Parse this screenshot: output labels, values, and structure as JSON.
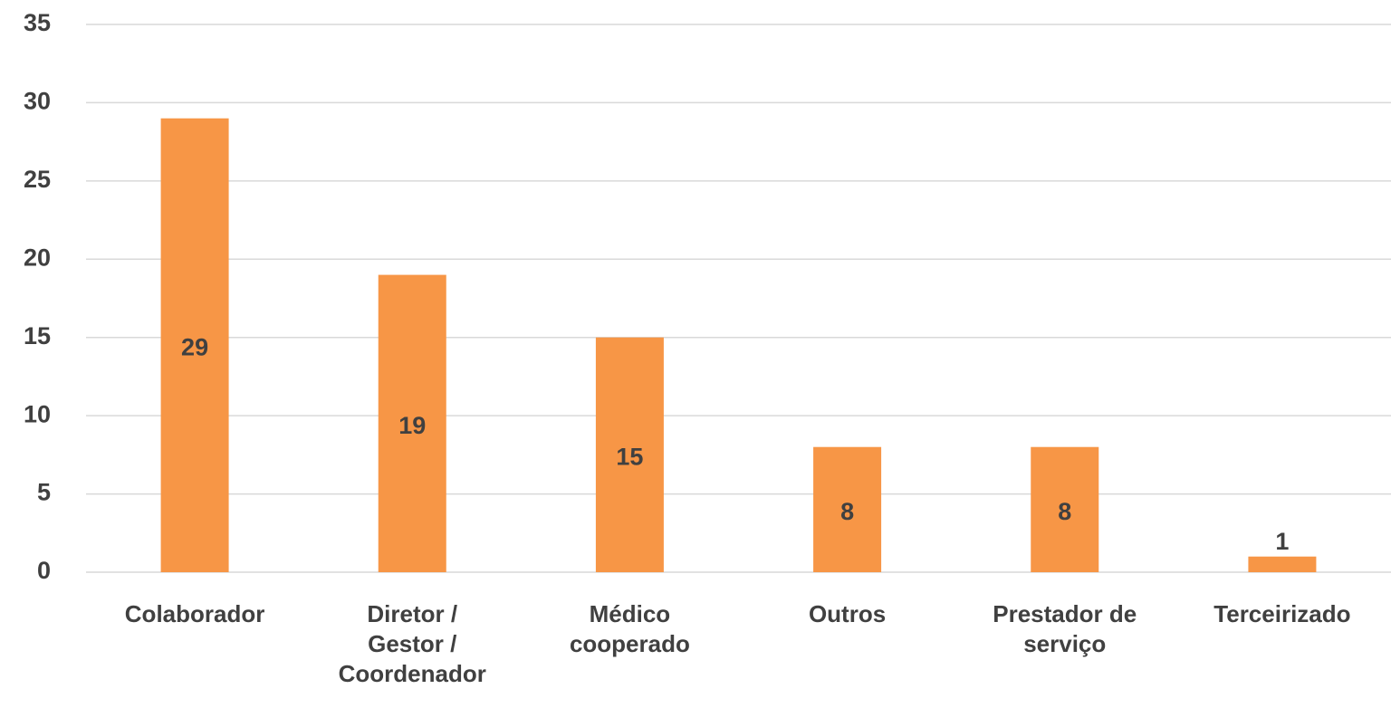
{
  "chart_data": {
    "type": "bar",
    "categories": [
      "Colaborador",
      "Diretor / Gestor / Coordenador",
      "Médico cooperado",
      "Outros",
      "Prestador de serviço",
      "Terceirizado"
    ],
    "values": [
      29,
      19,
      15,
      8,
      8,
      1
    ],
    "color": "#f79646",
    "ylim": [
      0,
      35
    ],
    "yticks": [
      0,
      5,
      10,
      15,
      20,
      25,
      30,
      35
    ],
    "grid": true
  }
}
